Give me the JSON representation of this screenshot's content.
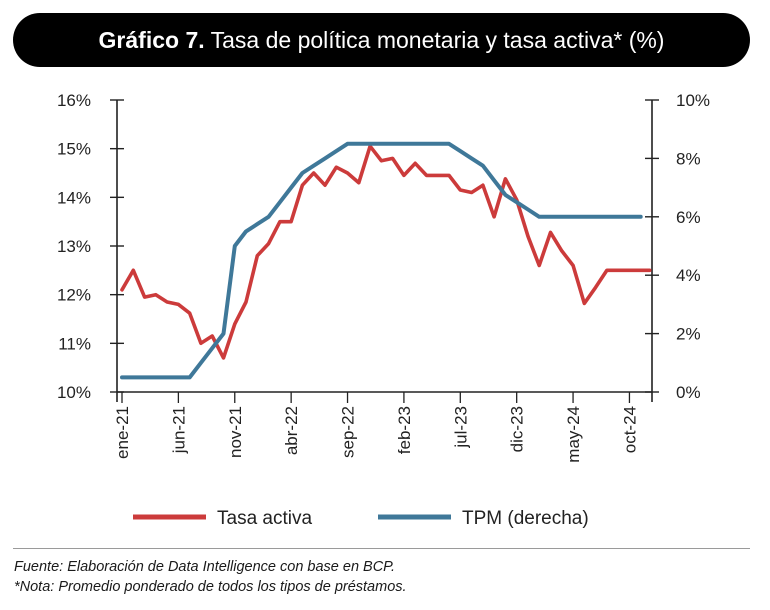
{
  "header": {
    "label": "Gráfico 7.",
    "title": "Tasa de política monetaria y tasa activa* (%)"
  },
  "chart_data": {
    "type": "line",
    "title": "Tasa de política monetaria y tasa activa* (%)",
    "x_tick_labels": [
      "ene-21",
      "jun-21",
      "nov-21",
      "abr-22",
      "sep-22",
      "feb-23",
      "jul-23",
      "dic-23",
      "may-24",
      "oct-24"
    ],
    "y_left": {
      "ylim": [
        10,
        16
      ],
      "ticks": [
        10,
        11,
        12,
        13,
        14,
        15,
        16
      ],
      "tick_labels": [
        "10%",
        "11%",
        "12%",
        "13%",
        "14%",
        "15%",
        "16%"
      ]
    },
    "y_right": {
      "ylim": [
        0,
        10
      ],
      "ticks": [
        0,
        2,
        4,
        6,
        8,
        10
      ],
      "tick_labels": [
        "0%",
        "2%",
        "4%",
        "6%",
        "8%",
        "10%"
      ]
    },
    "months": 47,
    "series": [
      {
        "name": "Tasa activa",
        "axis": "left",
        "color": "#cc3b3b",
        "x": [
          0,
          1,
          2,
          3,
          4,
          5,
          6,
          7,
          8,
          9,
          10,
          11,
          12,
          13,
          14,
          15,
          16,
          17,
          18,
          19,
          20,
          21,
          22,
          23,
          24,
          25,
          26,
          27,
          28,
          29,
          30,
          31,
          32,
          33,
          34,
          35,
          36,
          37,
          38,
          39,
          40,
          41,
          42,
          43,
          44,
          45,
          46,
          46.8
        ],
        "values": [
          12.1,
          12.5,
          11.95,
          12.0,
          11.85,
          11.8,
          11.62,
          11.0,
          11.15,
          10.7,
          11.4,
          11.85,
          12.8,
          13.05,
          13.5,
          13.5,
          14.25,
          14.5,
          14.25,
          14.62,
          14.5,
          14.3,
          15.05,
          14.75,
          14.8,
          14.45,
          14.7,
          14.45,
          14.45,
          14.45,
          14.15,
          14.1,
          14.25,
          13.6,
          14.38,
          13.95,
          13.2,
          12.6,
          13.28,
          12.9,
          12.6,
          11.82,
          12.15,
          12.5,
          12.5,
          12.5,
          12.5,
          12.5
        ]
      },
      {
        "name": "TPM (derecha)",
        "axis": "right",
        "color": "#3f7899",
        "x": [
          0,
          1,
          2,
          3,
          4,
          5,
          6,
          7,
          8,
          9,
          10,
          11,
          12,
          13,
          14,
          15,
          16,
          17,
          18,
          19,
          20,
          21,
          22,
          23,
          24,
          25,
          26,
          27,
          28,
          29,
          30,
          31,
          32,
          33,
          34,
          35,
          36,
          37,
          38,
          39,
          40,
          41,
          42,
          43,
          44,
          45,
          46
        ],
        "values": [
          0.5,
          0.5,
          0.5,
          0.5,
          0.5,
          0.5,
          0.5,
          1.0,
          1.5,
          2.0,
          5.0,
          5.5,
          5.75,
          6.0,
          6.5,
          7.0,
          7.5,
          7.75,
          8.0,
          8.25,
          8.5,
          8.5,
          8.5,
          8.5,
          8.5,
          8.5,
          8.5,
          8.5,
          8.5,
          8.5,
          8.25,
          8.0,
          7.75,
          7.25,
          6.75,
          6.5,
          6.25,
          6.0,
          6.0,
          6.0,
          6.0,
          6.0,
          6.0,
          6.0,
          6.0,
          6.0,
          6.0
        ]
      }
    ]
  },
  "legend": {
    "items": [
      {
        "label": "Tasa activa",
        "color": "#cc3b3b"
      },
      {
        "label": "TPM (derecha)",
        "color": "#3f7899"
      }
    ]
  },
  "footer": {
    "source": "Fuente: Elaboración de Data Intelligence con base en BCP.",
    "note": "*Nota: Promedio ponderado de todos los tipos de préstamos."
  }
}
